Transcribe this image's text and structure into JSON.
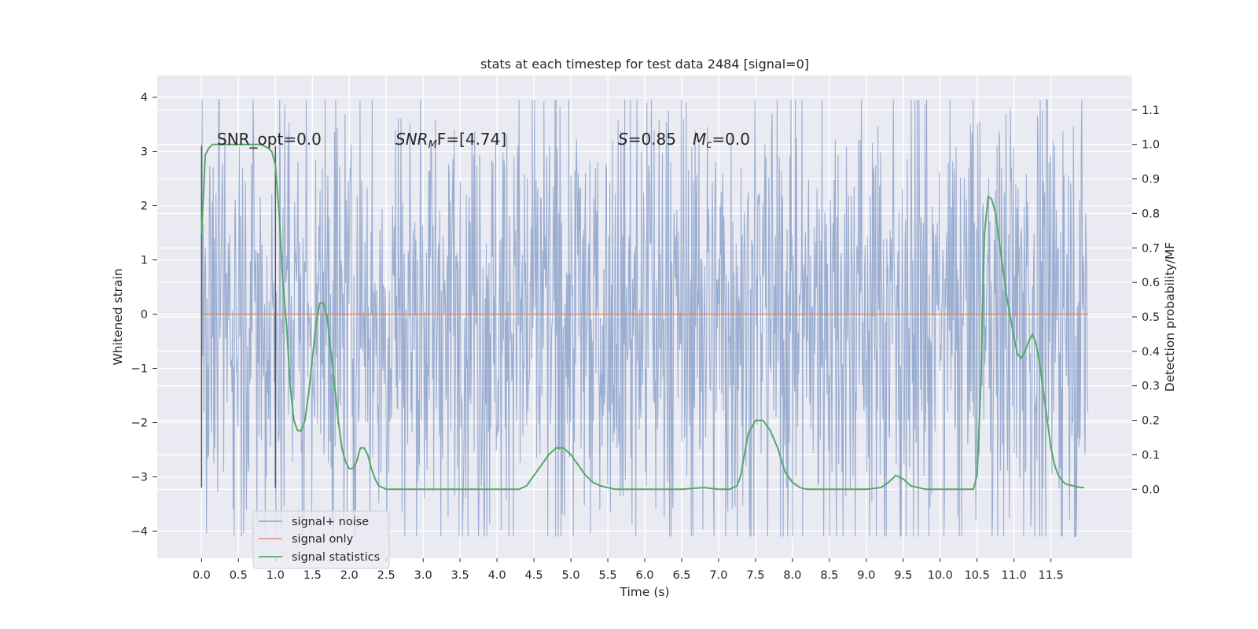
{
  "chart_data": {
    "type": "line",
    "title": "stats at each timestep for test data 2484 [signal=0]",
    "xlabel": "Time (s)",
    "ylabel": "Whitened strain",
    "ylabel_right": "Detection probability/MF",
    "xlim": [
      -0.6,
      12.6
    ],
    "ylim": [
      -4.5,
      4.4
    ],
    "ylim_right": [
      -0.2,
      1.2
    ],
    "x_ticks": [
      0.0,
      0.5,
      1.0,
      1.5,
      2.0,
      2.5,
      3.0,
      3.5,
      4.0,
      4.5,
      5.0,
      5.5,
      6.0,
      6.5,
      7.0,
      7.5,
      8.0,
      8.5,
      9.0,
      9.5,
      10.0,
      10.5,
      11.0,
      11.5
    ],
    "x_tick_labels": [
      "0.0",
      "0.5",
      "1.0",
      "1.5",
      "2.0",
      "2.5",
      "3.0",
      "3.5",
      "4.0",
      "4.5",
      "5.0",
      "5.5",
      "6.0",
      "6.5",
      "7.0",
      "7.5",
      "8.0",
      "8.5",
      "9.0",
      "9.5",
      "10.0",
      "10.5",
      "11.0",
      "11.5"
    ],
    "y_ticks": [
      -4,
      -3,
      -2,
      -1,
      0,
      1,
      2,
      3,
      4
    ],
    "y_tick_labels": [
      "−4",
      "−3",
      "−2",
      "−1",
      "0",
      "1",
      "2",
      "3",
      "4"
    ],
    "y_right_ticks": [
      0.0,
      0.1,
      0.2,
      0.3,
      0.4,
      0.5,
      0.6,
      0.7,
      0.8,
      0.9,
      1.0,
      1.1
    ],
    "y_right_tick_labels": [
      "0.0",
      "0.1",
      "0.2",
      "0.3",
      "0.4",
      "0.5",
      "0.6",
      "0.7",
      "0.8",
      "0.9",
      "1.0",
      "1.1"
    ],
    "grid": true,
    "legend_placement": "lower-left",
    "annotations": {
      "snr_opt": "SNR_opt=0.0",
      "snr_mf_main": "SNR",
      "snr_mf_sub": "M",
      "snr_mf_rest": "F=[4.74]",
      "s_main": "S",
      "s_rest": "=0.85",
      "mc_main": "M",
      "mc_sub": "c",
      "mc_rest": "=0.0"
    },
    "window_markers": {
      "x": [
        0.0,
        1.0
      ],
      "y_range": [
        -3.2,
        3.1
      ]
    },
    "series": [
      {
        "name": "signal+ noise",
        "color": "#4c72b0",
        "axis": "left",
        "x_range": [
          0.0,
          12.0
        ],
        "typical_envelope": [
          -2.3,
          2.3
        ],
        "extremes": [
          -4.1,
          3.95
        ]
      },
      {
        "name": "signal only",
        "color": "#dd8452",
        "axis": "left",
        "x": [
          0.0,
          12.0
        ],
        "values": [
          0.0,
          0.0
        ]
      },
      {
        "name": "signal statistics",
        "color": "#55a868",
        "axis": "right",
        "x": [
          0.0,
          0.05,
          0.1,
          0.15,
          0.2,
          0.3,
          0.4,
          0.5,
          0.6,
          0.7,
          0.8,
          0.9,
          0.95,
          1.0,
          1.05,
          1.1,
          1.15,
          1.2,
          1.25,
          1.3,
          1.35,
          1.4,
          1.45,
          1.5,
          1.55,
          1.6,
          1.65,
          1.7,
          1.75,
          1.8,
          1.85,
          1.9,
          1.95,
          2.0,
          2.05,
          2.1,
          2.15,
          2.2,
          2.25,
          2.3,
          2.35,
          2.4,
          2.45,
          2.5,
          2.55,
          2.6,
          2.7,
          2.8,
          3.0,
          3.5,
          4.0,
          4.3,
          4.4,
          4.5,
          4.6,
          4.7,
          4.8,
          4.9,
          5.0,
          5.1,
          5.2,
          5.3,
          5.4,
          5.5,
          5.6,
          6.0,
          6.5,
          6.8,
          7.0,
          7.15,
          7.25,
          7.3,
          7.35,
          7.4,
          7.5,
          7.6,
          7.7,
          7.8,
          7.9,
          8.0,
          8.1,
          8.2,
          8.5,
          9.0,
          9.2,
          9.3,
          9.4,
          9.5,
          9.6,
          9.8,
          10.0,
          10.4,
          10.45,
          10.5,
          10.55,
          10.6,
          10.65,
          10.7,
          10.75,
          10.8,
          10.85,
          10.9,
          10.95,
          11.0,
          11.05,
          11.1,
          11.15,
          11.2,
          11.25,
          11.3,
          11.35,
          11.4,
          11.45,
          11.5,
          11.55,
          11.6,
          11.65,
          11.7,
          11.8,
          11.9,
          11.95
        ],
        "values": [
          0.74,
          0.97,
          0.99,
          1.0,
          1.0,
          1.0,
          1.0,
          1.0,
          1.0,
          1.0,
          1.0,
          0.99,
          0.98,
          0.94,
          0.8,
          0.6,
          0.48,
          0.3,
          0.2,
          0.17,
          0.17,
          0.2,
          0.28,
          0.38,
          0.48,
          0.54,
          0.54,
          0.5,
          0.4,
          0.3,
          0.2,
          0.12,
          0.08,
          0.06,
          0.06,
          0.08,
          0.12,
          0.12,
          0.1,
          0.06,
          0.03,
          0.01,
          0.005,
          0.0,
          0.0,
          0.0,
          0.0,
          0.0,
          0.0,
          0.0,
          0.0,
          0.0,
          0.01,
          0.04,
          0.07,
          0.1,
          0.12,
          0.12,
          0.1,
          0.07,
          0.04,
          0.02,
          0.01,
          0.005,
          0.0,
          0.0,
          0.0,
          0.005,
          0.0,
          0.0,
          0.01,
          0.04,
          0.1,
          0.16,
          0.2,
          0.2,
          0.17,
          0.12,
          0.05,
          0.02,
          0.005,
          0.0,
          0.0,
          0.0,
          0.005,
          0.02,
          0.04,
          0.03,
          0.01,
          0.0,
          0.0,
          0.0,
          0.0,
          0.04,
          0.3,
          0.74,
          0.85,
          0.84,
          0.8,
          0.72,
          0.64,
          0.56,
          0.5,
          0.44,
          0.39,
          0.38,
          0.4,
          0.43,
          0.45,
          0.42,
          0.36,
          0.28,
          0.2,
          0.12,
          0.07,
          0.04,
          0.025,
          0.015,
          0.01,
          0.005,
          0.005
        ]
      }
    ]
  }
}
